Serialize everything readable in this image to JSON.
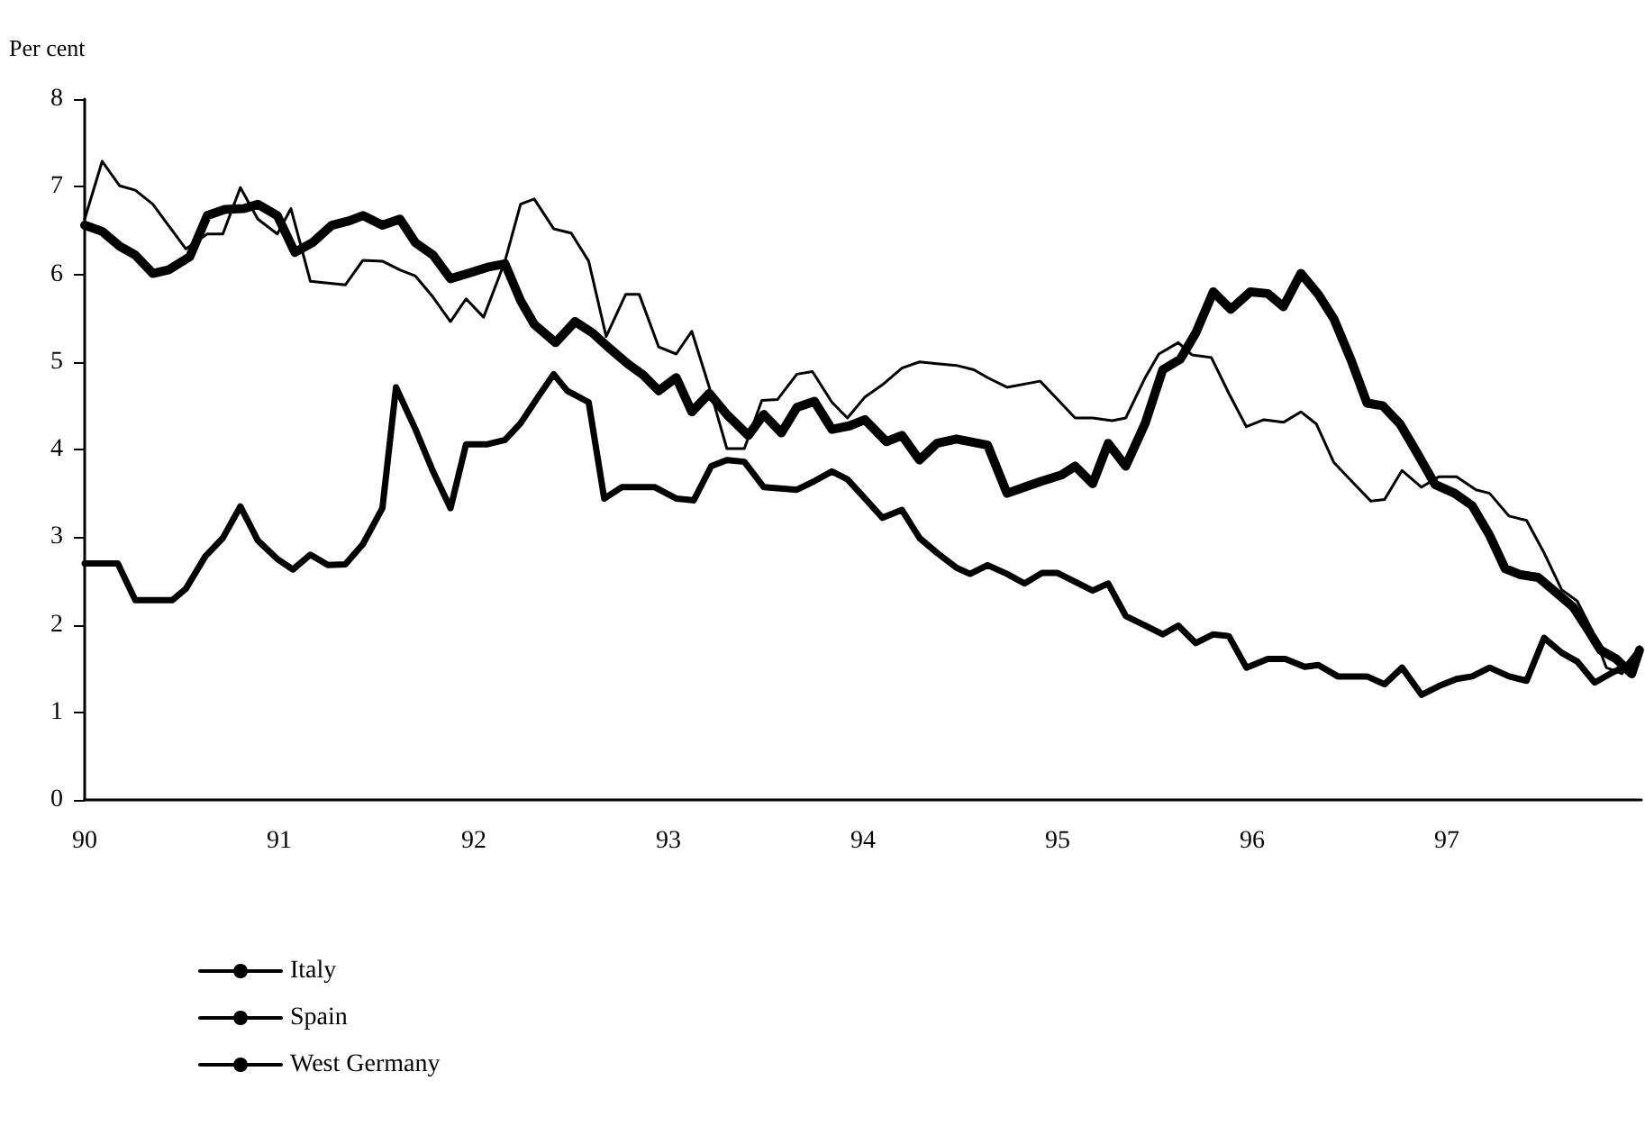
{
  "chart_data": {
    "type": "line",
    "ylabel": "Per cent",
    "xlim": [
      90,
      98
    ],
    "xticks": [
      90,
      91,
      92,
      93,
      94,
      95,
      96,
      97
    ],
    "ylim": [
      0,
      8
    ],
    "yticks": [
      0,
      1,
      2,
      3,
      4,
      5,
      6,
      7,
      8
    ],
    "grid": false,
    "legend": "bottom left",
    "marker": "none",
    "line_style": "solid",
    "series": [
      {
        "name": "Italy",
        "color": "#000000",
        "x": [
          90.0,
          90.09,
          90.18,
          90.26,
          90.35,
          90.43,
          90.52,
          90.63,
          90.71,
          90.8,
          90.89,
          90.99,
          91.06,
          91.16,
          91.25,
          91.34,
          91.43,
          91.53,
          91.62,
          91.7,
          91.79,
          91.88,
          91.96,
          92.05,
          92.16,
          92.24,
          92.31,
          92.41,
          92.5,
          92.59,
          92.68,
          92.78,
          92.85,
          92.95,
          93.04,
          93.12,
          93.21,
          93.3,
          93.39,
          93.48,
          93.56,
          93.66,
          93.74,
          93.84,
          93.92,
          94.01,
          94.1,
          94.2,
          94.29,
          94.38,
          94.48,
          94.57,
          94.64,
          94.74,
          94.91,
          95.0,
          95.09,
          95.18,
          95.28,
          95.35,
          95.45,
          95.52,
          95.62,
          95.69,
          95.79,
          95.88,
          95.97,
          96.06,
          96.16,
          96.25,
          96.33,
          96.42,
          96.51,
          96.61,
          96.68,
          96.77,
          96.87,
          96.96,
          97.05,
          97.15,
          97.22,
          97.32,
          97.41,
          97.5,
          97.59,
          97.67,
          97.75,
          97.82,
          97.9,
          97.96,
          97.99
        ],
        "values": [
          6.63,
          7.29,
          7.01,
          6.96,
          6.8,
          6.56,
          6.29,
          6.46,
          6.46,
          6.99,
          6.63,
          6.46,
          6.75,
          5.92,
          5.9,
          5.88,
          6.16,
          6.15,
          6.05,
          5.98,
          5.74,
          5.46,
          5.72,
          5.51,
          6.15,
          6.8,
          6.86,
          6.52,
          6.47,
          6.15,
          5.29,
          5.77,
          5.77,
          5.17,
          5.09,
          5.35,
          4.71,
          4.01,
          4.01,
          4.56,
          4.57,
          4.86,
          4.89,
          4.54,
          4.36,
          4.6,
          4.74,
          4.93,
          5.0,
          4.98,
          4.96,
          4.91,
          4.82,
          4.71,
          4.78,
          4.57,
          4.36,
          4.36,
          4.33,
          4.36,
          4.82,
          5.09,
          5.22,
          5.08,
          5.05,
          4.64,
          4.26,
          4.34,
          4.31,
          4.43,
          4.29,
          3.85,
          3.64,
          3.41,
          3.43,
          3.76,
          3.57,
          3.69,
          3.69,
          3.54,
          3.5,
          3.24,
          3.19,
          2.82,
          2.4,
          2.27,
          1.92,
          1.51,
          1.44,
          1.64,
          1.75
        ]
      },
      {
        "name": "Spain",
        "color": "#000000",
        "x": [
          90.0,
          90.09,
          90.18,
          90.26,
          90.35,
          90.43,
          90.54,
          90.63,
          90.72,
          90.82,
          90.89,
          90.99,
          91.08,
          91.17,
          91.27,
          91.36,
          91.43,
          91.53,
          91.62,
          91.7,
          91.79,
          91.88,
          91.97,
          92.07,
          92.16,
          92.24,
          92.31,
          92.42,
          92.52,
          92.61,
          92.7,
          92.79,
          92.87,
          92.95,
          93.04,
          93.12,
          93.21,
          93.3,
          93.41,
          93.49,
          93.58,
          93.66,
          93.75,
          93.84,
          93.93,
          94.01,
          94.12,
          94.2,
          94.29,
          94.38,
          94.48,
          94.64,
          94.74,
          94.83,
          94.92,
          95.02,
          95.09,
          95.18,
          95.26,
          95.35,
          95.45,
          95.54,
          95.63,
          95.71,
          95.8,
          95.89,
          95.99,
          96.08,
          96.16,
          96.25,
          96.34,
          96.42,
          96.51,
          96.59,
          96.67,
          96.76,
          96.85,
          96.94,
          97.04,
          97.13,
          97.22,
          97.3,
          97.38,
          97.47,
          97.56,
          97.65,
          97.72,
          97.79,
          97.87,
          97.95,
          97.99
        ],
        "values": [
          6.56,
          6.49,
          6.32,
          6.22,
          6.01,
          6.05,
          6.2,
          6.67,
          6.74,
          6.75,
          6.8,
          6.67,
          6.25,
          6.36,
          6.56,
          6.61,
          6.67,
          6.56,
          6.63,
          6.36,
          6.22,
          5.95,
          6.01,
          6.08,
          6.12,
          5.7,
          5.43,
          5.22,
          5.46,
          5.33,
          5.15,
          4.98,
          4.85,
          4.67,
          4.82,
          4.43,
          4.64,
          4.4,
          4.16,
          4.4,
          4.19,
          4.48,
          4.55,
          4.23,
          4.27,
          4.34,
          4.09,
          4.16,
          3.88,
          4.07,
          4.12,
          4.05,
          3.5,
          3.57,
          3.64,
          3.71,
          3.81,
          3.61,
          4.07,
          3.81,
          4.3,
          4.91,
          5.03,
          5.33,
          5.8,
          5.6,
          5.8,
          5.78,
          5.63,
          6.01,
          5.77,
          5.49,
          5.01,
          4.53,
          4.5,
          4.29,
          3.95,
          3.6,
          3.5,
          3.36,
          3.02,
          2.64,
          2.57,
          2.54,
          2.37,
          2.2,
          1.96,
          1.71,
          1.61,
          1.44,
          1.71
        ]
      },
      {
        "name": "West Germany",
        "color": "#000000",
        "x": [
          90.0,
          90.17,
          90.26,
          90.45,
          90.52,
          90.62,
          90.71,
          90.8,
          90.89,
          90.99,
          91.07,
          91.16,
          91.25,
          91.34,
          91.43,
          91.53,
          91.6,
          91.7,
          91.79,
          91.88,
          91.96,
          92.07,
          92.16,
          92.24,
          92.33,
          92.41,
          92.48,
          92.59,
          92.67,
          92.76,
          92.93,
          93.04,
          93.13,
          93.22,
          93.3,
          93.39,
          93.49,
          93.66,
          93.75,
          93.84,
          93.92,
          94.01,
          94.1,
          94.2,
          94.29,
          94.38,
          94.48,
          94.55,
          94.64,
          94.74,
          94.83,
          94.92,
          95.0,
          95.09,
          95.18,
          95.26,
          95.35,
          95.45,
          95.54,
          95.62,
          95.71,
          95.8,
          95.88,
          95.97,
          96.08,
          96.17,
          96.27,
          96.34,
          96.44,
          96.51,
          96.59,
          96.68,
          96.77,
          96.87,
          96.96,
          97.05,
          97.13,
          97.22,
          97.32,
          97.41,
          97.5,
          97.59,
          97.67,
          97.76,
          97.84,
          97.93,
          97.99
        ],
        "values": [
          2.7,
          2.7,
          2.28,
          2.28,
          2.41,
          2.78,
          2.99,
          3.35,
          2.96,
          2.75,
          2.63,
          2.8,
          2.68,
          2.69,
          2.92,
          3.33,
          4.71,
          4.23,
          3.75,
          3.33,
          4.06,
          4.06,
          4.11,
          4.3,
          4.6,
          4.86,
          4.67,
          4.54,
          3.44,
          3.57,
          3.57,
          3.44,
          3.42,
          3.81,
          3.88,
          3.86,
          3.57,
          3.54,
          3.64,
          3.75,
          3.66,
          3.44,
          3.22,
          3.31,
          2.99,
          2.82,
          2.65,
          2.58,
          2.68,
          2.58,
          2.47,
          2.59,
          2.59,
          2.49,
          2.39,
          2.47,
          2.1,
          1.99,
          1.89,
          1.99,
          1.79,
          1.89,
          1.87,
          1.51,
          1.61,
          1.61,
          1.52,
          1.54,
          1.41,
          1.41,
          1.41,
          1.32,
          1.51,
          1.2,
          1.3,
          1.38,
          1.41,
          1.51,
          1.41,
          1.36,
          1.85,
          1.68,
          1.58,
          1.34,
          1.44,
          1.54,
          1.71
        ]
      }
    ]
  }
}
